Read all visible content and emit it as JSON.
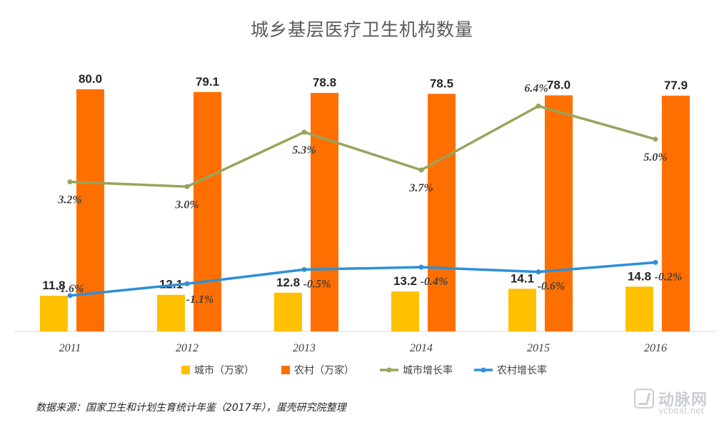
{
  "chart_data": {
    "type": "bar",
    "title": "城乡基层医疗卫生机构数量",
    "categories": [
      "2011",
      "2012",
      "2013",
      "2014",
      "2015",
      "2016"
    ],
    "series": [
      {
        "name": "城市（万家）",
        "kind": "bar",
        "color": "#FFC000",
        "values": [
          11.8,
          12.1,
          12.8,
          13.2,
          14.1,
          14.8
        ],
        "labels": [
          "11.8",
          "12.1",
          "12.8",
          "13.2",
          "14.1",
          "14.8"
        ]
      },
      {
        "name": "农村（万家）",
        "kind": "bar",
        "color": "#FF6F00",
        "values": [
          80.0,
          79.1,
          78.8,
          78.5,
          78.0,
          77.9
        ],
        "labels": [
          "80.0",
          "79.1",
          "78.8",
          "78.5",
          "78.0",
          "77.9"
        ]
      },
      {
        "name": "城市增长率",
        "kind": "line",
        "color": "#9BA35B",
        "values": [
          3.2,
          3.0,
          5.3,
          3.7,
          6.4,
          5.0
        ],
        "labels": [
          "3.2%",
          "3.0%",
          "5.3%",
          "3.7%",
          "6.4%",
          "5.0%"
        ]
      },
      {
        "name": "农村增长率",
        "kind": "line",
        "color": "#2E8FD8",
        "values": [
          -1.6,
          -1.1,
          -0.5,
          -0.4,
          -0.6,
          -0.2
        ],
        "labels": [
          "-1.6%",
          "-1.1%",
          "-0.5%",
          "-0.4%",
          "-0.6%",
          "-0.2%"
        ]
      }
    ],
    "ylim_bars": [
      0,
      88
    ],
    "ylim_rate": [
      -2.6,
      7.5
    ],
    "grid": false,
    "legend": "bottom"
  },
  "source": "数据来源：国家卫生和计划生育统计年鉴（2017年），蛋壳研究院整理",
  "watermark": {
    "name": "动脉网",
    "site": "vcbeat.net"
  }
}
